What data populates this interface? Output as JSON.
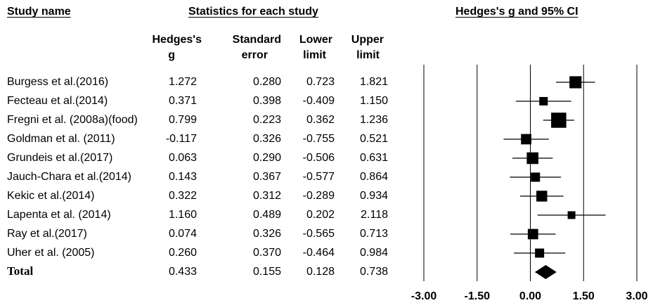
{
  "headers": {
    "study_name": "Study name",
    "statistics": "Statistics for each study",
    "ci": "Hedges's g and 95% CI",
    "col_g_1": "Hedges's",
    "col_g_2": "g",
    "col_se_1": "Standard",
    "col_se_2": "error",
    "col_lo_1": "Lower",
    "col_lo_2": "limit",
    "col_hi_1": "Upper",
    "col_hi_2": "limit"
  },
  "rows": [
    {
      "study": "Burgess et al.(2016)",
      "g": "1.272",
      "se": "0.280",
      "lo": "0.723",
      "hi": "1.821"
    },
    {
      "study": "Fecteau et al.(2014)",
      "g": "0.371",
      "se": "0.398",
      "lo": "-0.409",
      "hi": "1.150"
    },
    {
      "study": "Fregni et al. (2008a)(food)",
      "g": "0.799",
      "se": "0.223",
      "lo": "0.362",
      "hi": "1.236"
    },
    {
      "study": "Goldman et al. (2011)",
      "g": "-0.117",
      "se": "0.326",
      "lo": "-0.755",
      "hi": "0.521"
    },
    {
      "study": "Grundeis et al.(2017)",
      "g": "0.063",
      "se": "0.290",
      "lo": "-0.506",
      "hi": "0.631"
    },
    {
      "study": "Jauch-Chara et al.(2014)",
      "g": "0.143",
      "se": "0.367",
      "lo": "-0.577",
      "hi": "0.864"
    },
    {
      "study": "Kekic et al.(2014)",
      "g": "0.322",
      "se": "0.312",
      "lo": "-0.289",
      "hi": "0.934"
    },
    {
      "study": "Lapenta et al. (2014)",
      "g": "1.160",
      "se": "0.489",
      "lo": "0.202",
      "hi": "2.118"
    },
    {
      "study": "Ray et al.(2017)",
      "g": "0.074",
      "se": "0.326",
      "lo": "-0.565",
      "hi": "0.713"
    },
    {
      "study": "Uher et al. (2005)",
      "g": "0.260",
      "se": "0.370",
      "lo": "-0.464",
      "hi": "0.984"
    }
  ],
  "total": {
    "label": "Total",
    "g": "0.433",
    "se": "0.155",
    "lo": "0.128",
    "hi": "0.738"
  },
  "chart_data": {
    "type": "forest",
    "xlim": [
      -3.0,
      3.0
    ],
    "ticks": [
      -3.0,
      -1.5,
      0.0,
      1.5,
      3.0
    ],
    "tick_labels": [
      "-3.00",
      "-1.50",
      "0.00",
      "1.50",
      "3.00"
    ],
    "studies": [
      {
        "name": "Burgess et al.(2016)",
        "g": 1.272,
        "se": 0.28,
        "lower": 0.723,
        "upper": 1.821
      },
      {
        "name": "Fecteau et al.(2014)",
        "g": 0.371,
        "se": 0.398,
        "lower": -0.409,
        "upper": 1.15
      },
      {
        "name": "Fregni et al. (2008a)(food)",
        "g": 0.799,
        "se": 0.223,
        "lower": 0.362,
        "upper": 1.236
      },
      {
        "name": "Goldman et al. (2011)",
        "g": -0.117,
        "se": 0.326,
        "lower": -0.755,
        "upper": 0.521
      },
      {
        "name": "Grundeis et al.(2017)",
        "g": 0.063,
        "se": 0.29,
        "lower": -0.506,
        "upper": 0.631
      },
      {
        "name": "Jauch-Chara et al.(2014)",
        "g": 0.143,
        "se": 0.367,
        "lower": -0.577,
        "upper": 0.864
      },
      {
        "name": "Kekic et al.(2014)",
        "g": 0.322,
        "se": 0.312,
        "lower": -0.289,
        "upper": 0.934
      },
      {
        "name": "Lapenta et al. (2014)",
        "g": 1.16,
        "se": 0.489,
        "lower": 0.202,
        "upper": 2.118
      },
      {
        "name": "Ray et al.(2017)",
        "g": 0.074,
        "se": 0.326,
        "lower": -0.565,
        "upper": 0.713
      },
      {
        "name": "Uher et al. (2005)",
        "g": 0.26,
        "se": 0.37,
        "lower": -0.464,
        "upper": 0.984
      }
    ],
    "summary": {
      "name": "Total",
      "g": 0.433,
      "se": 0.155,
      "lower": 0.128,
      "upper": 0.738
    }
  }
}
